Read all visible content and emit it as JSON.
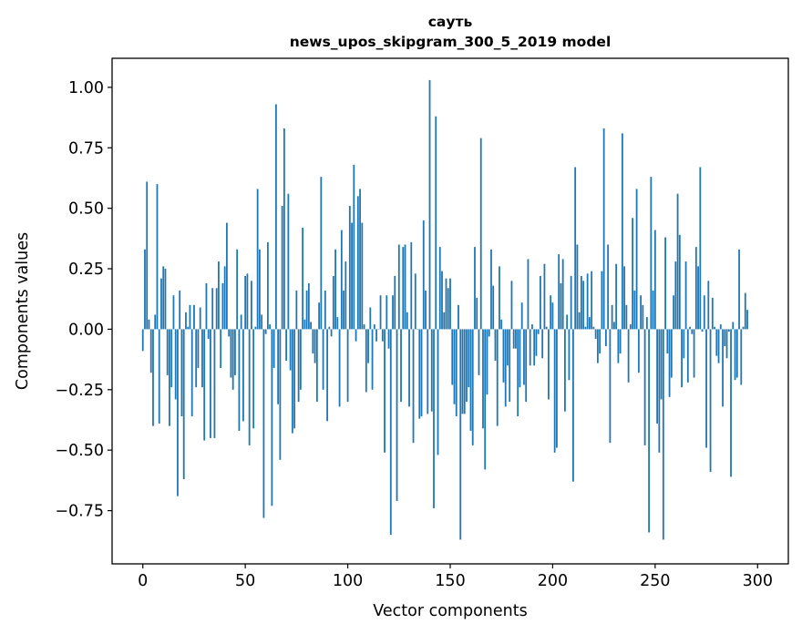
{
  "chart_data": {
    "type": "bar",
    "title": "сауть",
    "subtitle": "news_upos_skipgram_300_5_2019 model",
    "xlabel": "Vector components",
    "ylabel": "Components values",
    "xlim": [
      -15,
      315
    ],
    "ylim": [
      -0.97,
      1.12
    ],
    "xticks": [
      0,
      50,
      100,
      150,
      200,
      250,
      300
    ],
    "yticks": [
      1.0,
      0.75,
      0.5,
      0.25,
      0.0,
      -0.25,
      -0.5,
      -0.75
    ],
    "ytick_labels": [
      "1.00",
      "0.75",
      "0.50",
      "0.25",
      "0.00",
      "−0.25",
      "−0.50",
      "−0.75"
    ],
    "bar_color": "#1f77b4",
    "values": [
      -0.09,
      0.33,
      0.61,
      0.04,
      -0.18,
      -0.4,
      0.06,
      0.6,
      -0.39,
      0.21,
      0.26,
      0.25,
      -0.19,
      -0.4,
      -0.24,
      0.14,
      -0.29,
      -0.69,
      0.16,
      -0.36,
      -0.62,
      0.07,
      0.01,
      0.1,
      -0.36,
      0.1,
      -0.24,
      -0.16,
      0.09,
      -0.24,
      -0.46,
      0.19,
      -0.04,
      -0.45,
      0.17,
      -0.45,
      0.17,
      0.28,
      -0.16,
      0.19,
      0.26,
      0.44,
      -0.03,
      -0.2,
      -0.25,
      -0.19,
      0.33,
      -0.42,
      0.06,
      -0.38,
      0.22,
      0.23,
      -0.48,
      0.2,
      -0.41,
      0.01,
      0.58,
      0.33,
      0.06,
      -0.78,
      -0.02,
      0.36,
      0.02,
      -0.73,
      -0.16,
      0.93,
      -0.31,
      -0.54,
      0.51,
      0.83,
      -0.13,
      0.56,
      -0.17,
      -0.43,
      -0.41,
      0.16,
      -0.3,
      -0.25,
      0.42,
      0.04,
      0.16,
      0.19,
      0.03,
      -0.1,
      -0.14,
      -0.3,
      0.11,
      0.63,
      -0.25,
      0.16,
      -0.38,
      0.01,
      -0.03,
      0.22,
      0.33,
      0.05,
      -0.32,
      0.41,
      0.16,
      0.28,
      -0.3,
      0.51,
      0.44,
      0.68,
      -0.05,
      0.55,
      0.58,
      0.44,
      0.02,
      -0.26,
      -0.14,
      0.09,
      -0.25,
      0.02,
      -0.05,
      0.0,
      0.14,
      -0.05,
      -0.51,
      0.14,
      -0.08,
      -0.85,
      0.14,
      0.22,
      -0.71,
      0.35,
      -0.3,
      0.34,
      0.35,
      0.07,
      -0.32,
      0.36,
      -0.47,
      0.23,
      0.0,
      -0.37,
      -0.36,
      0.45,
      0.16,
      -0.35,
      1.03,
      -0.34,
      -0.74,
      0.88,
      -0.52,
      0.34,
      0.24,
      0.07,
      0.21,
      0.17,
      0.21,
      -0.23,
      -0.31,
      -0.36,
      0.1,
      -0.87,
      -0.35,
      -0.35,
      -0.3,
      -0.24,
      -0.42,
      -0.48,
      0.34,
      0.13,
      -0.19,
      0.79,
      -0.41,
      -0.58,
      -0.27,
      -0.03,
      0.33,
      0.18,
      -0.13,
      -0.4,
      0.26,
      0.04,
      -0.22,
      -0.32,
      -0.15,
      -0.3,
      0.2,
      -0.08,
      -0.08,
      -0.36,
      -0.24,
      0.11,
      -0.23,
      -0.3,
      0.29,
      -0.15,
      0.02,
      -0.15,
      -0.11,
      -0.02,
      0.22,
      -0.12,
      0.27,
      0.01,
      -0.29,
      0.14,
      0.11,
      -0.51,
      -0.49,
      0.31,
      0.19,
      0.29,
      -0.34,
      0.06,
      -0.21,
      0.22,
      -0.63,
      0.67,
      0.35,
      0.07,
      0.22,
      0.2,
      0.01,
      0.23,
      0.05,
      0.24,
      0.01,
      -0.04,
      -0.14,
      -0.1,
      0.24,
      0.83,
      -0.07,
      0.35,
      -0.47,
      0.1,
      0.03,
      0.27,
      -0.14,
      -0.1,
      0.81,
      0.26,
      0.1,
      -0.22,
      0.02,
      0.46,
      0.16,
      0.58,
      -0.18,
      0.14,
      0.1,
      -0.48,
      0.05,
      -0.84,
      0.63,
      0.16,
      0.41,
      -0.39,
      -0.51,
      -0.29,
      -0.87,
      0.38,
      -0.1,
      -0.28,
      -0.2,
      0.14,
      0.28,
      0.56,
      0.39,
      -0.24,
      -0.12,
      0.28,
      -0.22,
      0.01,
      -0.02,
      -0.2,
      0.34,
      0.26,
      0.67,
      -0.01,
      0.14,
      -0.49,
      0.2,
      -0.59,
      0.13,
      0.01,
      -0.11,
      -0.14,
      0.02,
      -0.32,
      -0.07,
      -0.12,
      -0.01,
      -0.61,
      0.03,
      -0.21,
      -0.2,
      0.33,
      -0.23,
      0.01,
      0.15,
      0.08
    ]
  }
}
